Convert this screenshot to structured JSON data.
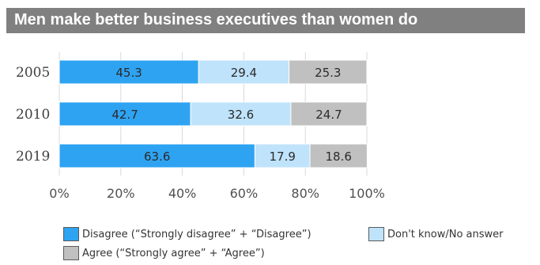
{
  "title": "Men make better business executives than women do",
  "chart_data": {
    "type": "bar",
    "orientation": "horizontal",
    "stacked": true,
    "title": "Men make better business executives than women do",
    "categories": [
      "2005",
      "2010",
      "2019"
    ],
    "series": [
      {
        "name": "Disagree (“Strongly disagree” + “Disagree”)",
        "values": [
          45.3,
          42.7,
          63.6
        ],
        "color": "#2ea3f2"
      },
      {
        "name": "Don't know/No answer",
        "values": [
          29.4,
          32.6,
          17.9
        ],
        "color": "#bfe3fb"
      },
      {
        "name": "Agree (“Strongly agree” + “Agree”)",
        "values": [
          25.3,
          24.7,
          18.6
        ],
        "color": "#c0c0c0"
      }
    ],
    "xlim": [
      0,
      100
    ],
    "xticks": [
      "0%",
      "20%",
      "40%",
      "60%",
      "80%",
      "100%"
    ],
    "grid": true,
    "legend": "bottom"
  }
}
